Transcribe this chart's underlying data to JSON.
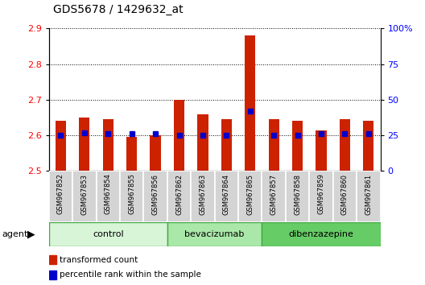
{
  "title": "GDS5678 / 1429632_at",
  "samples": [
    "GSM967852",
    "GSM967853",
    "GSM967854",
    "GSM967855",
    "GSM967856",
    "GSM967862",
    "GSM967863",
    "GSM967864",
    "GSM967865",
    "GSM967857",
    "GSM967858",
    "GSM967859",
    "GSM967860",
    "GSM967861"
  ],
  "transformed_count": [
    2.64,
    2.65,
    2.645,
    2.595,
    2.6,
    2.7,
    2.66,
    2.645,
    2.88,
    2.645,
    2.64,
    2.615,
    2.645,
    2.64
  ],
  "percentile_rank": [
    25,
    27,
    26,
    26,
    26,
    25,
    25,
    25,
    42,
    25,
    25,
    26,
    26,
    26
  ],
  "groups": [
    {
      "label": "control",
      "start": 0,
      "end": 5,
      "color": "#d8f5d8"
    },
    {
      "label": "bevacizumab",
      "start": 5,
      "end": 9,
      "color": "#aae8aa"
    },
    {
      "label": "dibenzazepine",
      "start": 9,
      "end": 14,
      "color": "#66cc66"
    }
  ],
  "ylim_left": [
    2.5,
    2.9
  ],
  "ylim_right": [
    0,
    100
  ],
  "yticks_left": [
    2.5,
    2.6,
    2.7,
    2.8,
    2.9
  ],
  "yticks_right": [
    0,
    25,
    50,
    75,
    100
  ],
  "ytick_labels_right": [
    "0",
    "25",
    "50",
    "75",
    "100%"
  ],
  "bar_color": "#cc2200",
  "dot_color": "#0000cc",
  "bar_bottom": 2.5,
  "agent_label": "agent"
}
